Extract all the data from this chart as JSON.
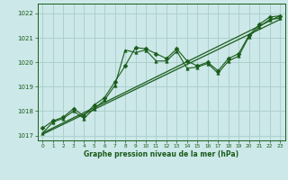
{
  "title": "Graphe pression niveau de la mer (hPa)",
  "background_color": "#cce8e8",
  "grid_color": "#aacccc",
  "line_color": "#1a5c1a",
  "xlim": [
    -0.5,
    23.5
  ],
  "ylim": [
    1016.8,
    1022.4
  ],
  "yticks": [
    1017,
    1018,
    1019,
    1020,
    1021,
    1022
  ],
  "xticks": [
    0,
    1,
    2,
    3,
    4,
    5,
    6,
    7,
    8,
    9,
    10,
    11,
    12,
    13,
    14,
    15,
    16,
    17,
    18,
    19,
    20,
    21,
    22,
    23
  ],
  "series": [
    {
      "x": [
        0,
        1,
        2,
        3,
        4,
        5,
        6,
        7,
        8,
        9,
        10,
        11,
        12,
        13,
        14,
        15,
        16,
        17,
        18,
        19,
        20,
        21,
        22,
        23
      ],
      "y": [
        1017.3,
        1017.6,
        1017.75,
        1018.1,
        1017.8,
        1018.25,
        1018.55,
        1019.2,
        1019.85,
        1020.6,
        1020.55,
        1020.35,
        1020.15,
        1020.55,
        1020.05,
        1019.85,
        1020.0,
        1019.65,
        1020.15,
        1020.35,
        1021.1,
        1021.55,
        1021.85,
        1021.9
      ],
      "marker": "D",
      "markersize": 2.5,
      "linewidth": 0.8
    },
    {
      "x": [
        0,
        1,
        2,
        3,
        4,
        5,
        6,
        7,
        8,
        9,
        10,
        11,
        12,
        13,
        14,
        15,
        16,
        17,
        18,
        19,
        20,
        21,
        22,
        23
      ],
      "y": [
        1017.1,
        1017.55,
        1017.7,
        1018.0,
        1017.7,
        1018.1,
        1018.45,
        1019.05,
        1020.5,
        1020.4,
        1020.5,
        1020.05,
        1020.05,
        1020.45,
        1019.75,
        1019.8,
        1019.95,
        1019.55,
        1020.05,
        1020.25,
        1021.05,
        1021.45,
        1021.75,
        1021.8
      ],
      "marker": "^",
      "markersize": 2.5,
      "linewidth": 0.8
    },
    {
      "x": [
        0,
        23
      ],
      "y": [
        1017.1,
        1021.9
      ],
      "marker": null,
      "markersize": 0,
      "linewidth": 0.9
    },
    {
      "x": [
        0,
        23
      ],
      "y": [
        1017.05,
        1021.75
      ],
      "marker": null,
      "markersize": 0,
      "linewidth": 0.9
    }
  ]
}
